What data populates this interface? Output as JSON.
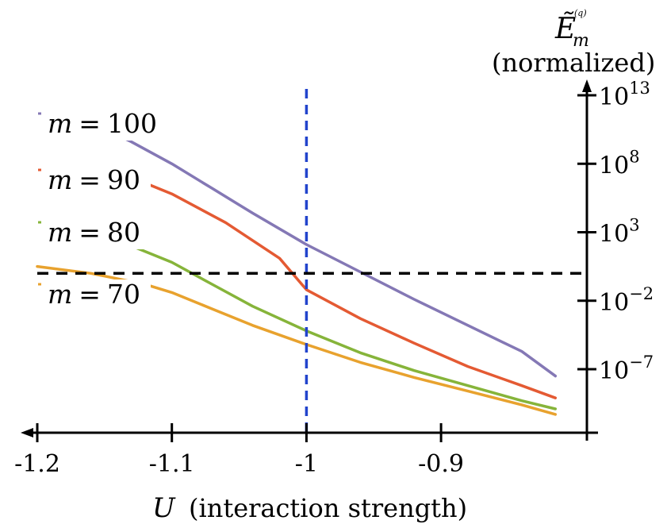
{
  "chart_data": {
    "type": "line",
    "title": "",
    "xlabel": {
      "var": "U",
      "desc": "(interaction strength)"
    },
    "ylabel": {
      "symbol": "Ẽ",
      "sub": "m",
      "sup": "(q)",
      "note": "(normalized)"
    },
    "x_axis": {
      "direction": "reversed (arrow points left)",
      "ticks": [
        -1.2,
        -1.1,
        -1.0,
        -0.9
      ],
      "tick_labels": [
        "-1.2",
        "-1.1",
        "-1",
        "-0.9"
      ],
      "range": [
        -1.2,
        -0.8
      ]
    },
    "y_axis": {
      "scale": "log10",
      "position": "right",
      "ticks": [
        {
          "base": "10",
          "exp": "13",
          "value_exp": 13
        },
        {
          "base": "10",
          "exp": "8",
          "value_exp": 8
        },
        {
          "base": "10",
          "exp": "3",
          "value_exp": 3
        },
        {
          "base": "10",
          "exp": "−2",
          "value_exp": -2
        },
        {
          "base": "10",
          "exp": "−7",
          "value_exp": -7
        }
      ],
      "range_exp": [
        -11,
        14
      ]
    },
    "reference_lines": [
      {
        "orientation": "vertical",
        "x": -1.0,
        "color": "#2244cc",
        "style": "dashed"
      },
      {
        "orientation": "horizontal",
        "y_exp": 0,
        "color": "#000000",
        "style": "dashed"
      }
    ],
    "series": [
      {
        "name": "m = 100",
        "label_var": "m",
        "label_eq": "=",
        "label_num": "100",
        "color": "#8478b5",
        "x": [
          -1.155,
          -1.13,
          -1.1,
          -1.07,
          -1.04,
          -1.0,
          -0.96,
          -0.92,
          -0.88,
          -0.84,
          -0.815
        ],
        "y_exp": [
          10.8,
          9.6,
          8.0,
          6.2,
          4.4,
          2.1,
          0.1,
          -1.9,
          -3.8,
          -5.7,
          -7.5
        ]
      },
      {
        "name": "m = 90",
        "label_var": "m",
        "label_eq": "=",
        "label_num": "90",
        "color": "#e45a33",
        "x": [
          -1.14,
          -1.1,
          -1.06,
          -1.02,
          -1.0,
          -0.96,
          -0.92,
          -0.88,
          -0.84,
          -0.815
        ],
        "y_exp": [
          7.4,
          5.8,
          3.7,
          1.1,
          -1.2,
          -3.3,
          -5.1,
          -6.8,
          -8.2,
          -9.1
        ]
      },
      {
        "name": "m = 80",
        "label_var": "m",
        "label_eq": "=",
        "label_num": "80",
        "color": "#86b43a",
        "x": [
          -1.13,
          -1.1,
          -1.07,
          -1.04,
          -1.0,
          -0.96,
          -0.92,
          -0.88,
          -0.84,
          -0.815
        ],
        "y_exp": [
          2.0,
          0.8,
          -0.8,
          -2.4,
          -4.2,
          -5.8,
          -7.1,
          -8.2,
          -9.3,
          -9.9
        ]
      },
      {
        "name": "m = 70",
        "label_var": "m",
        "label_eq": "=",
        "label_num": "70",
        "color": "#e8a22e",
        "x": [
          -1.2,
          -1.16,
          -1.12,
          -1.1,
          -1.07,
          -1.04,
          -1.0,
          -0.96,
          -0.92,
          -0.88,
          -0.84,
          -0.815
        ],
        "y_exp": [
          0.5,
          0.0,
          -0.8,
          -1.4,
          -2.6,
          -3.8,
          -5.2,
          -6.5,
          -7.6,
          -8.6,
          -9.6,
          -10.3
        ]
      }
    ],
    "grid": false,
    "legend": "inline labels at left"
  }
}
